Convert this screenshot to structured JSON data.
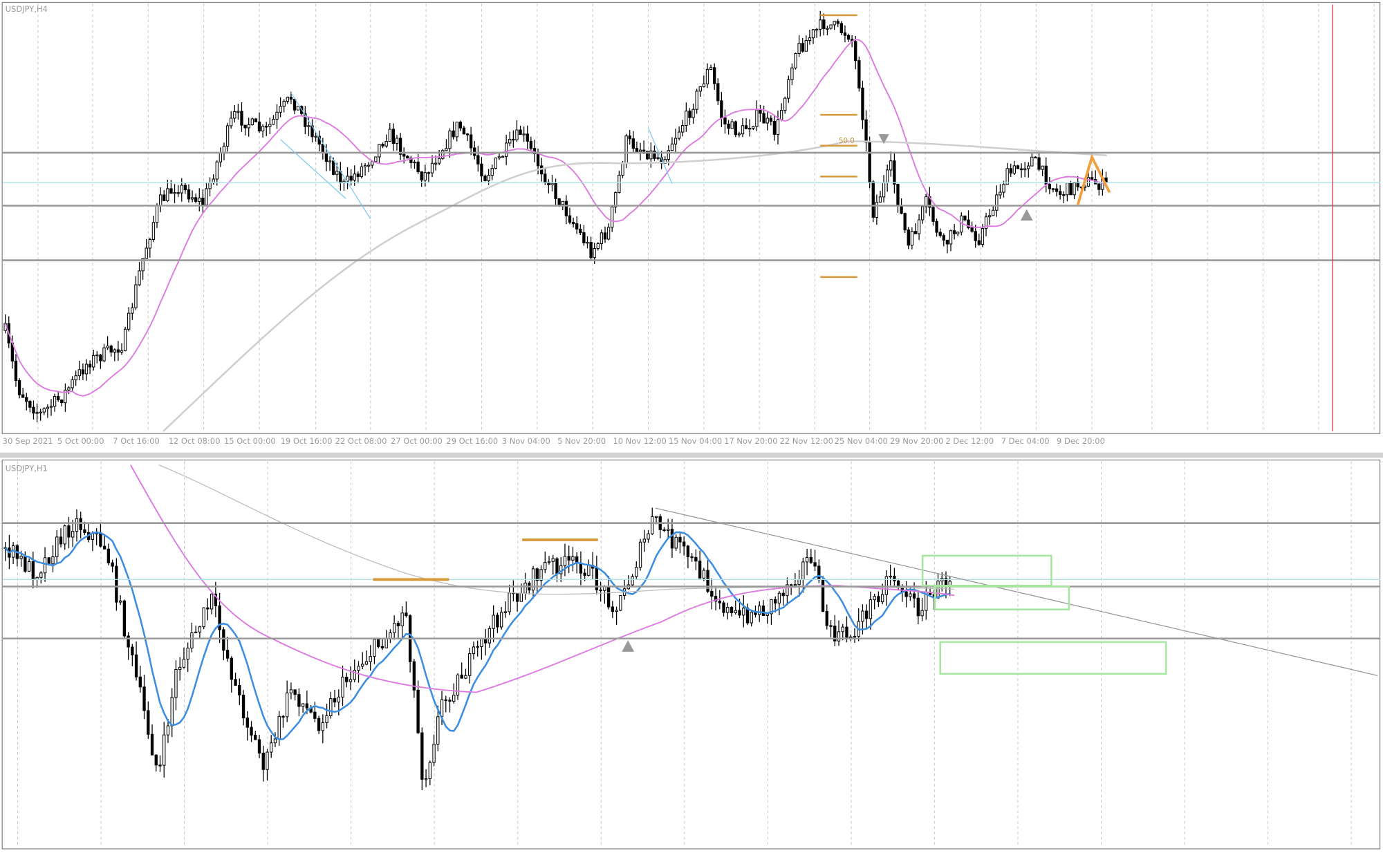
{
  "top_chart": {
    "title": "USDJPY,H4",
    "fib_label": "50.0",
    "x_labels": [
      "30 Sep 2021",
      "5 Oct 00:00",
      "7 Oct 16:00",
      "12 Oct 08:00",
      "15 Oct 00:00",
      "19 Oct 16:00",
      "22 Oct 08:00",
      "27 Oct 00:00",
      "29 Oct 16:00",
      "3 Nov 04:00",
      "5 Nov 20:00",
      "10 Nov 12:00",
      "15 Nov 04:00",
      "17 Nov 20:00",
      "22 Nov 12:00",
      "25 Nov 04:00",
      "29 Nov 20:00",
      "2 Dec 12:00",
      "7 Dec 04:00",
      "9 Dec 20:00"
    ]
  },
  "bottom_chart": {
    "title": "USDJPY,H1"
  }
}
